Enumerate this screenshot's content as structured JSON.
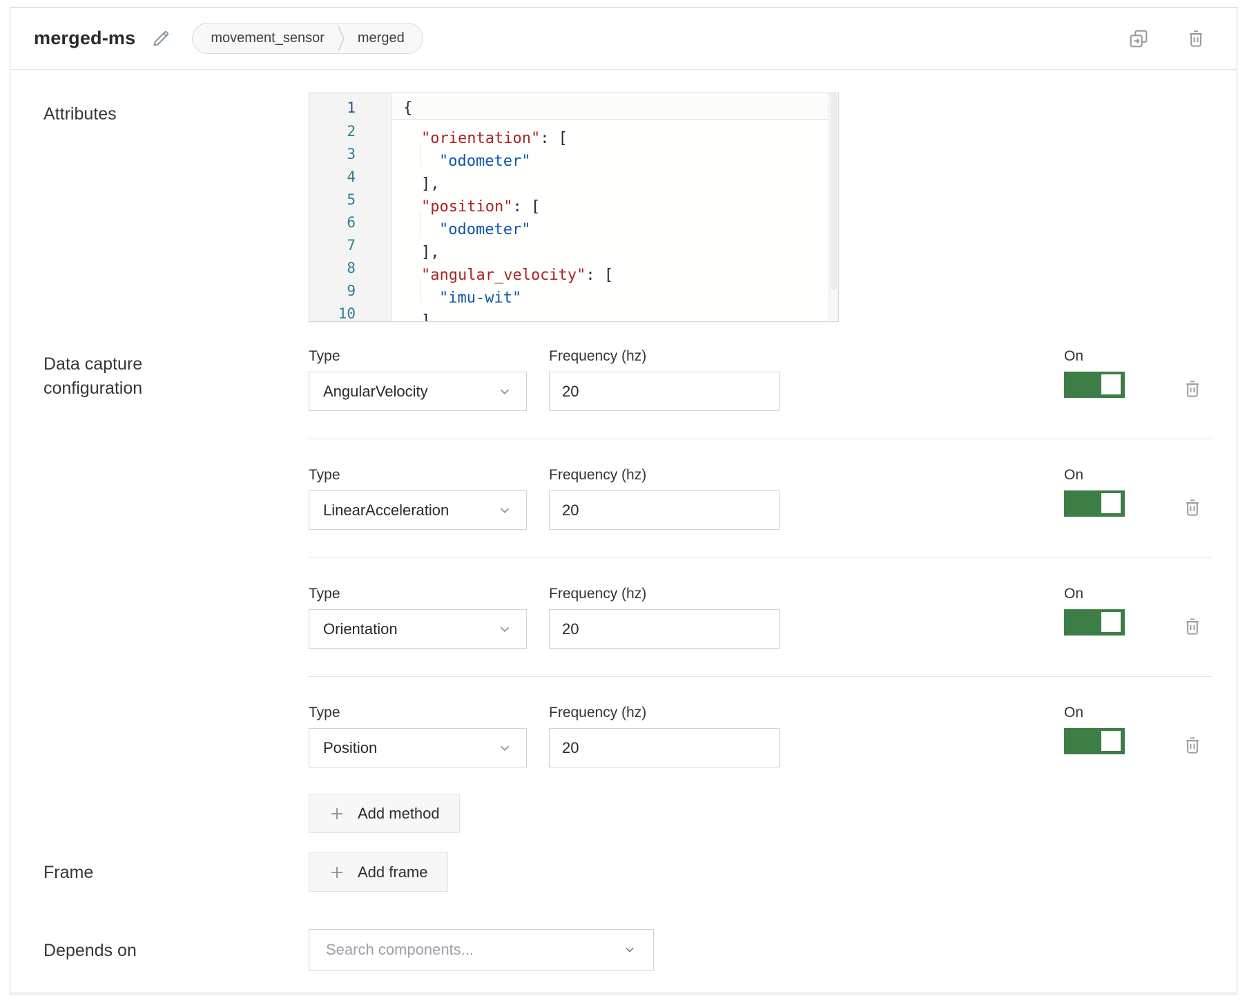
{
  "header": {
    "name": "merged-ms",
    "breadcrumb": {
      "type": "movement_sensor",
      "model": "merged"
    }
  },
  "attributes": {
    "label": "Attributes",
    "code_lines": [
      {
        "n": "1",
        "active": true,
        "indent": 0,
        "segments": [
          [
            "plain",
            "{"
          ]
        ]
      },
      {
        "n": "2",
        "indent": 1,
        "segments": [
          [
            "key",
            "\"orientation\""
          ],
          [
            "plain",
            ": ["
          ]
        ]
      },
      {
        "n": "3",
        "indent": 2,
        "guide": true,
        "segments": [
          [
            "str",
            "\"odometer\""
          ]
        ]
      },
      {
        "n": "4",
        "indent": 1,
        "segments": [
          [
            "plain",
            "],"
          ]
        ]
      },
      {
        "n": "5",
        "indent": 1,
        "segments": [
          [
            "key",
            "\"position\""
          ],
          [
            "plain",
            ": ["
          ]
        ]
      },
      {
        "n": "6",
        "indent": 2,
        "guide": true,
        "segments": [
          [
            "str",
            "\"odometer\""
          ]
        ]
      },
      {
        "n": "7",
        "indent": 1,
        "segments": [
          [
            "plain",
            "],"
          ]
        ]
      },
      {
        "n": "8",
        "indent": 1,
        "segments": [
          [
            "key",
            "\"angular_velocity\""
          ],
          [
            "plain",
            ": ["
          ]
        ]
      },
      {
        "n": "9",
        "indent": 2,
        "guide": true,
        "segments": [
          [
            "str",
            "\"imu-wit\""
          ]
        ]
      },
      {
        "n": "10",
        "indent": 1,
        "segments": [
          [
            "plain",
            "]"
          ]
        ]
      }
    ]
  },
  "data_capture": {
    "label": "Data capture configuration",
    "type_label": "Type",
    "frequency_label": "Frequency (hz)",
    "on_label": "On",
    "methods": [
      {
        "type": "AngularVelocity",
        "frequency": "20",
        "on": true
      },
      {
        "type": "LinearAcceleration",
        "frequency": "20",
        "on": true
      },
      {
        "type": "Orientation",
        "frequency": "20",
        "on": true
      },
      {
        "type": "Position",
        "frequency": "20",
        "on": true
      }
    ],
    "add_method_label": "Add method"
  },
  "frame": {
    "label": "Frame",
    "add_frame_label": "Add frame"
  },
  "depends_on": {
    "label": "Depends on",
    "placeholder": "Search components..."
  },
  "colors": {
    "toggle_on": "#3d7d46",
    "code_key": "#a92424",
    "code_string": "#0f57a8",
    "line_number": "#2d7f95"
  }
}
